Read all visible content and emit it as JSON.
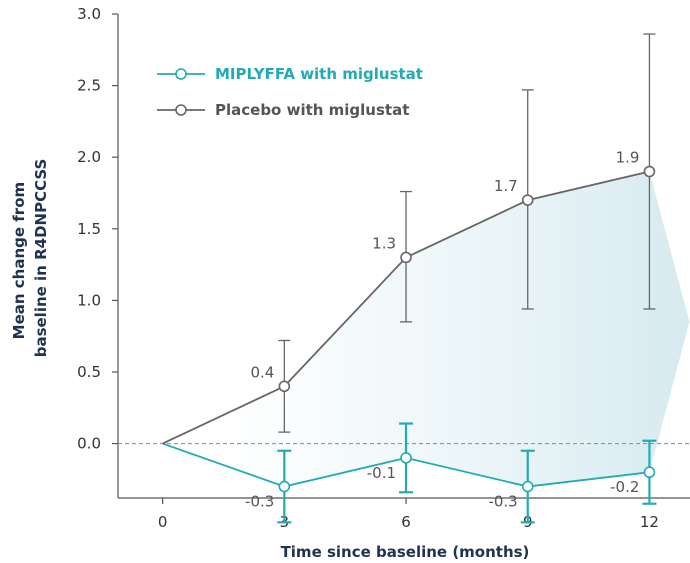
{
  "chart_data": {
    "type": "line",
    "xlabel": "Time since baseline (months)",
    "ylabel_lines": [
      "Mean change from",
      "baseline in R4DNPCCSS"
    ],
    "x": [
      0,
      3,
      6,
      9,
      12
    ],
    "x_ticks": [
      "0",
      "3",
      "6",
      "9",
      "12"
    ],
    "y_ticks": [
      "0.0",
      "0.5",
      "1.0",
      "1.5",
      "2.0",
      "2.5",
      "3.0"
    ],
    "ylim": [
      -0.38,
      3.0
    ],
    "xlim": [
      -1.1,
      13.0
    ],
    "reference_line_y": 0,
    "legend_position": "top-left",
    "series": [
      {
        "name": "MIPLYFFA with miglustat",
        "color": "#22aab5",
        "y": [
          0,
          -0.3,
          -0.1,
          -0.3,
          -0.2
        ],
        "error_low": [
          null,
          -0.55,
          -0.34,
          -0.55,
          -0.42
        ],
        "error_high": [
          null,
          -0.05,
          0.14,
          -0.05,
          0.02
        ],
        "labels": [
          "",
          "-0.3",
          "-0.1",
          "-0.3",
          "-0.2"
        ]
      },
      {
        "name": "Placebo with miglustat",
        "color": "#666666",
        "y": [
          0,
          0.4,
          1.3,
          1.7,
          1.9
        ],
        "error_low": [
          null,
          0.08,
          0.85,
          0.94,
          0.94
        ],
        "error_high": [
          null,
          0.72,
          1.76,
          2.47,
          2.86
        ],
        "labels": [
          "",
          "0.4",
          "1.3",
          "1.7",
          "1.9"
        ]
      }
    ],
    "shaded_difference_color": "#dbedf2"
  }
}
